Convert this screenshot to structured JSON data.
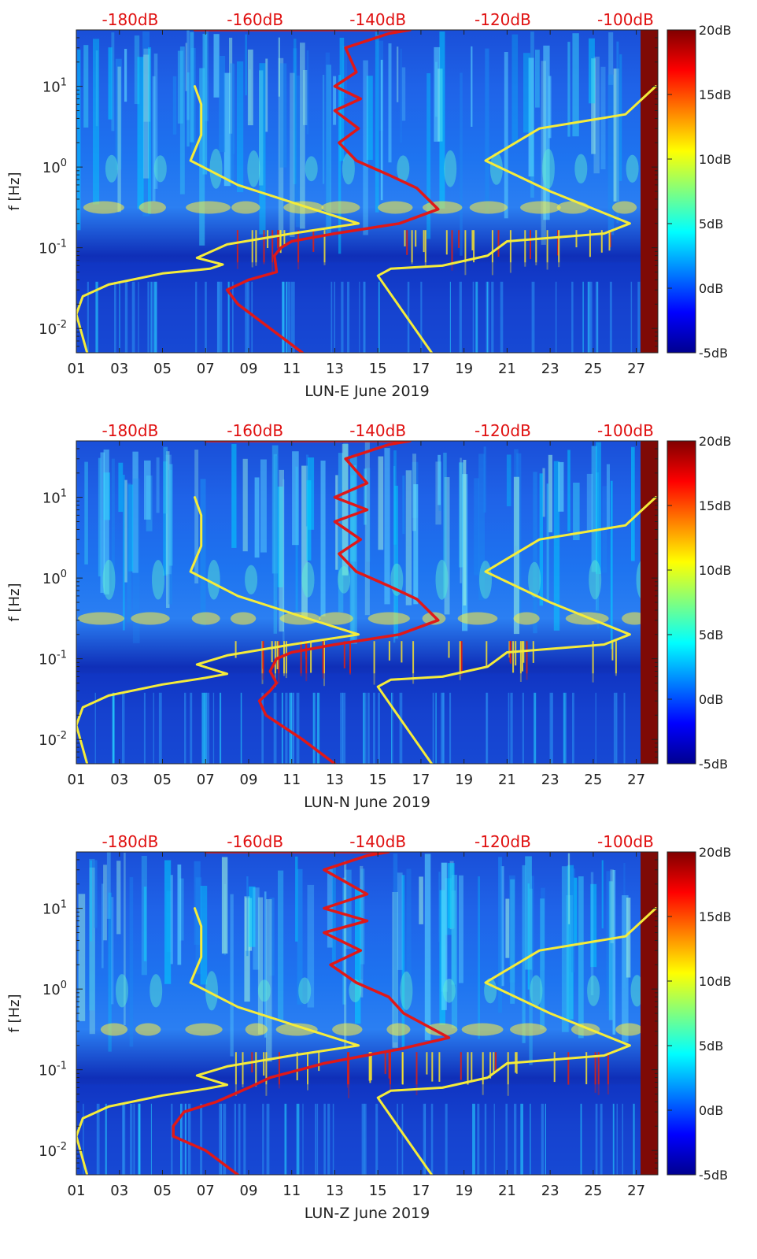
{
  "chart_data": [
    {
      "type": "heatmap",
      "station": "LUN-E",
      "xlabel": "LUN-E June 2019",
      "ylabel": "f [Hz]",
      "x_ticks": [
        "01",
        "03",
        "05",
        "07",
        "09",
        "11",
        "13",
        "15",
        "17",
        "19",
        "21",
        "23",
        "25",
        "27"
      ],
      "y_ticks": [
        {
          "base": "10",
          "exp": "1"
        },
        {
          "base": "10",
          "exp": "0"
        },
        {
          "base": "10",
          "exp": "-1"
        },
        {
          "base": "10",
          "exp": "-2"
        }
      ],
      "top_axis_labels": [
        "-180dB",
        "-160dB",
        "-140dB",
        "-120dB",
        "-100dB"
      ],
      "colorbar_labels": [
        "20dB",
        "15dB",
        "10dB",
        "5dB",
        "0dB",
        "-5dB"
      ],
      "clim": [
        -5,
        20
      ],
      "xlim_days": [
        1,
        28
      ],
      "ylim_hz": [
        0.005,
        50
      ],
      "series": [
        {
          "name": "yellow curve 1",
          "color": "#f5ec3a",
          "points": [
            [
              6.5,
              10
            ],
            [
              6.8,
              6
            ],
            [
              6.8,
              2.5
            ],
            [
              6.3,
              1.2
            ],
            [
              8.5,
              0.6
            ],
            [
              12,
              0.3
            ],
            [
              14.1,
              0.2
            ],
            [
              11,
              0.15
            ],
            [
              8,
              0.11
            ],
            [
              6.6,
              0.075
            ],
            [
              7.8,
              0.062
            ],
            [
              7.2,
              0.055
            ],
            [
              5,
              0.048
            ],
            [
              2.5,
              0.035
            ],
            [
              1.3,
              0.025
            ],
            [
              1.0,
              0.015
            ],
            [
              1.5,
              0.005
            ]
          ]
        },
        {
          "name": "yellow curve 2",
          "color": "#f5ec3a",
          "points": [
            [
              27.9,
              10
            ],
            [
              26.5,
              4.5
            ],
            [
              22.5,
              3
            ],
            [
              20.0,
              1.2
            ],
            [
              23,
              0.5
            ],
            [
              26.7,
              0.2
            ],
            [
              25.5,
              0.15
            ],
            [
              21,
              0.12
            ],
            [
              20.1,
              0.08
            ],
            [
              18,
              0.06
            ],
            [
              15.6,
              0.055
            ],
            [
              15.0,
              0.045
            ],
            [
              17.5,
              0.005
            ]
          ]
        },
        {
          "name": "red curve",
          "color": "#e01818",
          "points": [
            [
              6.5,
              50
            ],
            [
              13,
              50
            ],
            [
              16.5,
              50
            ],
            [
              15.5,
              45
            ],
            [
              13.5,
              30
            ],
            [
              14,
              15
            ],
            [
              13,
              10
            ],
            [
              14.2,
              7
            ],
            [
              13,
              5
            ],
            [
              14.1,
              3
            ],
            [
              13.2,
              2
            ],
            [
              14,
              1.2
            ],
            [
              15.5,
              0.8
            ],
            [
              16.8,
              0.55
            ],
            [
              17.8,
              0.3
            ],
            [
              16,
              0.2
            ],
            [
              13,
              0.15
            ],
            [
              11,
              0.12
            ],
            [
              10.5,
              0.1
            ],
            [
              10.2,
              0.08
            ],
            [
              10.3,
              0.05
            ],
            [
              9,
              0.04
            ],
            [
              8,
              0.03
            ],
            [
              8.5,
              0.02
            ],
            [
              10,
              0.01
            ],
            [
              11.5,
              0.005
            ]
          ]
        }
      ]
    },
    {
      "type": "heatmap",
      "station": "LUN-N",
      "xlabel": "LUN-N June 2019",
      "ylabel": "f [Hz]",
      "x_ticks": [
        "01",
        "03",
        "05",
        "07",
        "09",
        "11",
        "13",
        "15",
        "17",
        "19",
        "21",
        "23",
        "25",
        "27"
      ],
      "y_ticks": [
        {
          "base": "10",
          "exp": "1"
        },
        {
          "base": "10",
          "exp": "0"
        },
        {
          "base": "10",
          "exp": "-1"
        },
        {
          "base": "10",
          "exp": "-2"
        }
      ],
      "top_axis_labels": [
        "-180dB",
        "-160dB",
        "-140dB",
        "-120dB",
        "-100dB"
      ],
      "colorbar_labels": [
        "20dB",
        "15dB",
        "10dB",
        "5dB",
        "0dB",
        "-5dB"
      ],
      "clim": [
        -5,
        20
      ],
      "xlim_days": [
        1,
        28
      ],
      "ylim_hz": [
        0.005,
        50
      ],
      "series": [
        {
          "name": "yellow curve 1",
          "color": "#f5ec3a",
          "points": [
            [
              6.5,
              10
            ],
            [
              6.8,
              6
            ],
            [
              6.8,
              2.5
            ],
            [
              6.3,
              1.2
            ],
            [
              8.5,
              0.6
            ],
            [
              12,
              0.3
            ],
            [
              14.1,
              0.2
            ],
            [
              11,
              0.15
            ],
            [
              8,
              0.11
            ],
            [
              6.6,
              0.085
            ],
            [
              8,
              0.065
            ],
            [
              7,
              0.058
            ],
            [
              5,
              0.048
            ],
            [
              2.5,
              0.035
            ],
            [
              1.3,
              0.025
            ],
            [
              1.0,
              0.015
            ],
            [
              1.5,
              0.005
            ]
          ]
        },
        {
          "name": "yellow curve 2",
          "color": "#f5ec3a",
          "points": [
            [
              27.9,
              10
            ],
            [
              26.5,
              4.5
            ],
            [
              22.5,
              3
            ],
            [
              20.0,
              1.2
            ],
            [
              23,
              0.5
            ],
            [
              26.7,
              0.2
            ],
            [
              25.5,
              0.15
            ],
            [
              21,
              0.12
            ],
            [
              20.1,
              0.08
            ],
            [
              18,
              0.06
            ],
            [
              15.6,
              0.055
            ],
            [
              15.0,
              0.045
            ],
            [
              17.5,
              0.005
            ]
          ]
        },
        {
          "name": "red curve",
          "color": "#e01818",
          "points": [
            [
              7,
              50
            ],
            [
              13,
              50
            ],
            [
              16.5,
              50
            ],
            [
              15.5,
              45
            ],
            [
              13.5,
              30
            ],
            [
              14.5,
              15
            ],
            [
              13,
              10
            ],
            [
              14.5,
              7
            ],
            [
              13,
              5
            ],
            [
              14.2,
              3
            ],
            [
              13.2,
              2
            ],
            [
              14,
              1.2
            ],
            [
              15.5,
              0.8
            ],
            [
              16.8,
              0.55
            ],
            [
              17.8,
              0.3
            ],
            [
              16,
              0.2
            ],
            [
              13,
              0.15
            ],
            [
              11,
              0.12
            ],
            [
              10.3,
              0.1
            ],
            [
              10,
              0.07
            ],
            [
              10.3,
              0.05
            ],
            [
              10,
              0.04
            ],
            [
              9.5,
              0.03
            ],
            [
              9.8,
              0.02
            ],
            [
              11.5,
              0.01
            ],
            [
              13,
              0.005
            ]
          ]
        }
      ]
    },
    {
      "type": "heatmap",
      "station": "LUN-Z",
      "xlabel": "LUN-Z June 2019",
      "ylabel": "f [Hz]",
      "x_ticks": [
        "01",
        "03",
        "05",
        "07",
        "09",
        "11",
        "13",
        "15",
        "17",
        "19",
        "21",
        "23",
        "25",
        "27"
      ],
      "y_ticks": [
        {
          "base": "10",
          "exp": "1"
        },
        {
          "base": "10",
          "exp": "0"
        },
        {
          "base": "10",
          "exp": "-1"
        },
        {
          "base": "10",
          "exp": "-2"
        }
      ],
      "top_axis_labels": [
        "-180dB",
        "-160dB",
        "-140dB",
        "-120dB",
        "-100dB"
      ],
      "colorbar_labels": [
        "20dB",
        "15dB",
        "10dB",
        "5dB",
        "0dB",
        "-5dB"
      ],
      "clim": [
        -5,
        20
      ],
      "xlim_days": [
        1,
        28
      ],
      "ylim_hz": [
        0.005,
        50
      ],
      "series": [
        {
          "name": "yellow curve 1",
          "color": "#f5ec3a",
          "points": [
            [
              6.5,
              10
            ],
            [
              6.8,
              6
            ],
            [
              6.8,
              2.5
            ],
            [
              6.3,
              1.2
            ],
            [
              8.5,
              0.6
            ],
            [
              12,
              0.3
            ],
            [
              14.1,
              0.2
            ],
            [
              11,
              0.15
            ],
            [
              8,
              0.11
            ],
            [
              6.6,
              0.085
            ],
            [
              8,
              0.065
            ],
            [
              7,
              0.058
            ],
            [
              5,
              0.048
            ],
            [
              2.5,
              0.035
            ],
            [
              1.3,
              0.025
            ],
            [
              1.0,
              0.015
            ],
            [
              1.5,
              0.005
            ]
          ]
        },
        {
          "name": "yellow curve 2",
          "color": "#f5ec3a",
          "points": [
            [
              27.9,
              10
            ],
            [
              26.5,
              4.5
            ],
            [
              22.5,
              3
            ],
            [
              20.0,
              1.2
            ],
            [
              23,
              0.5
            ],
            [
              26.7,
              0.2
            ],
            [
              25.5,
              0.15
            ],
            [
              21,
              0.12
            ],
            [
              20.1,
              0.08
            ],
            [
              18,
              0.06
            ],
            [
              15.6,
              0.055
            ],
            [
              15.0,
              0.045
            ],
            [
              17.5,
              0.005
            ]
          ]
        },
        {
          "name": "red curve",
          "color": "#e01818",
          "points": [
            [
              7,
              50
            ],
            [
              13,
              50
            ],
            [
              15.5,
              50
            ],
            [
              14.5,
              45
            ],
            [
              12.5,
              30
            ],
            [
              14.5,
              15
            ],
            [
              12.5,
              10
            ],
            [
              14.5,
              7
            ],
            [
              12.5,
              5
            ],
            [
              14.2,
              3
            ],
            [
              12.8,
              2
            ],
            [
              14,
              1.2
            ],
            [
              15.5,
              0.8
            ],
            [
              16.2,
              0.5
            ],
            [
              18.3,
              0.25
            ],
            [
              16,
              0.18
            ],
            [
              12.5,
              0.12
            ],
            [
              10,
              0.08
            ],
            [
              9,
              0.06
            ],
            [
              7.5,
              0.04
            ],
            [
              6,
              0.03
            ],
            [
              5.5,
              0.02
            ],
            [
              5.5,
              0.015
            ],
            [
              7,
              0.01
            ],
            [
              8.5,
              0.005
            ]
          ]
        }
      ]
    }
  ]
}
